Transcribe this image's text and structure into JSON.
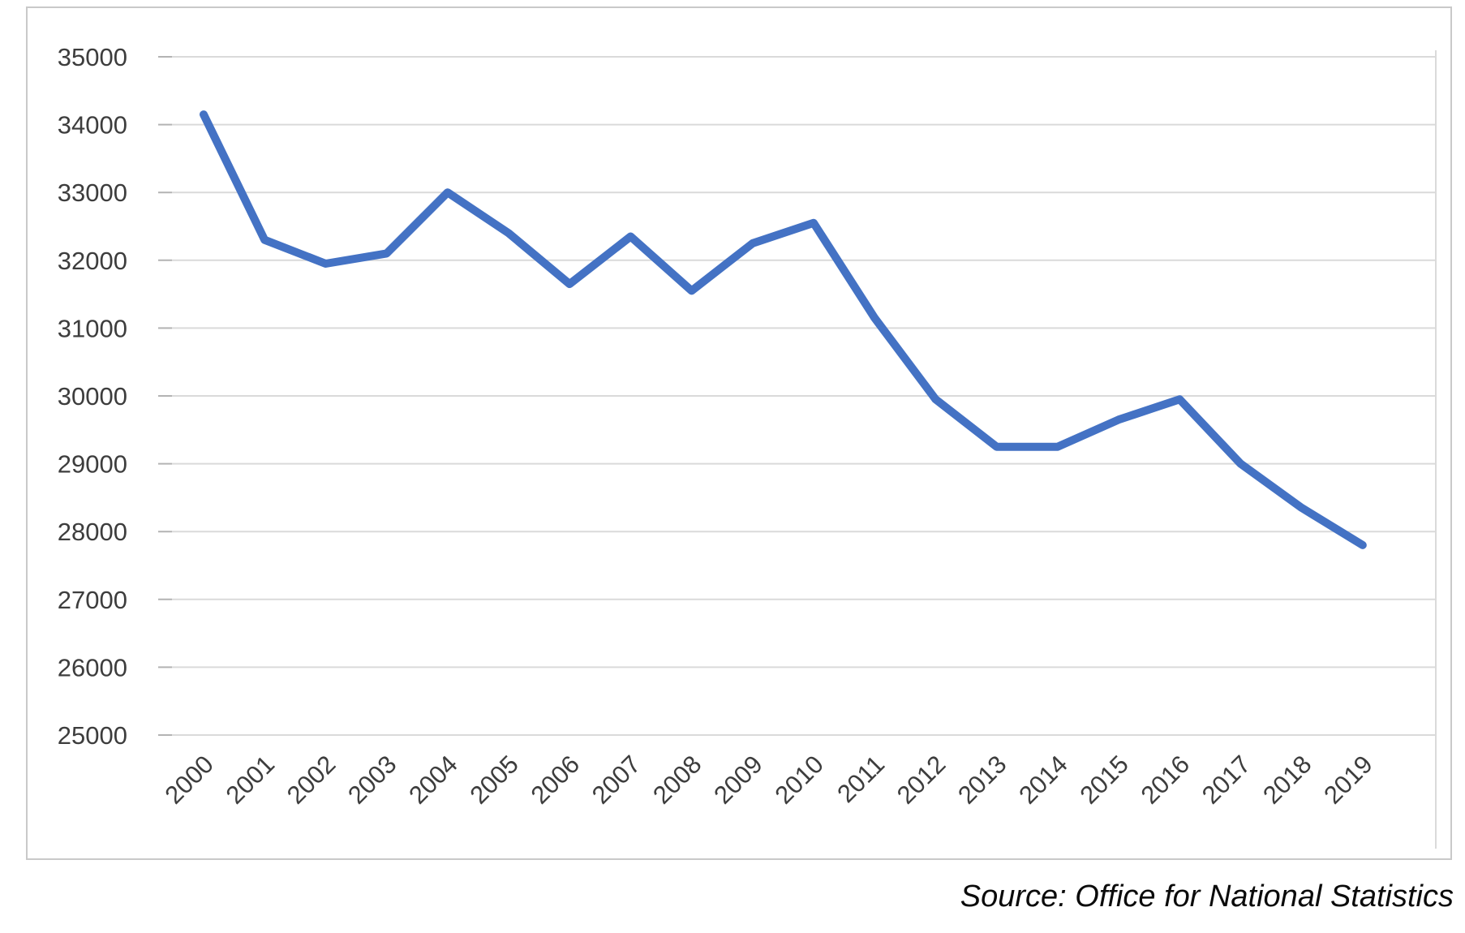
{
  "chart_data": {
    "type": "line",
    "x": [
      "2000",
      "2001",
      "2002",
      "2003",
      "2004",
      "2005",
      "2006",
      "2007",
      "2008",
      "2009",
      "2010",
      "2011",
      "2012",
      "2013",
      "2014",
      "2015",
      "2016",
      "2017",
      "2018",
      "2019"
    ],
    "series": [
      {
        "name": "value",
        "values": [
          34150,
          32300,
          31950,
          32100,
          33000,
          32400,
          31650,
          32350,
          31550,
          32250,
          32550,
          31150,
          29950,
          29250,
          29250,
          29650,
          29950,
          29000,
          28350,
          27800
        ]
      }
    ],
    "title": "",
    "xlabel": "",
    "ylabel": "",
    "ylim": [
      25000,
      35000
    ],
    "ytick_step": 1000,
    "ytick_labels": [
      "25000",
      "26000",
      "27000",
      "28000",
      "29000",
      "30000",
      "31000",
      "32000",
      "33000",
      "34000",
      "35000"
    ],
    "grid": "horizontal",
    "legend": "none",
    "colors": {
      "line": "#4472C4",
      "gridline": "#dadada",
      "tick": "#b3b3b3",
      "axis_label": "#3d3d3d",
      "card_border": "#c9c9c9"
    }
  },
  "source_note": "Source: Office for National Statistics"
}
